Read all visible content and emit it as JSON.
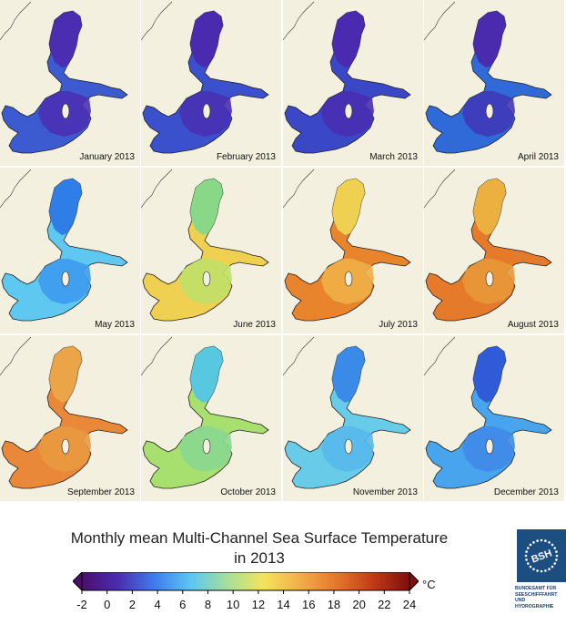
{
  "title_line1": "Monthly mean Multi-Channel Sea Surface Temperature",
  "title_line2": "in 2013",
  "panels": [
    {
      "label": "January 2013",
      "colors": {
        "north": "#4a2db0",
        "central": "#4a30b4",
        "south": "#3d5bd0"
      }
    },
    {
      "label": "February 2013",
      "colors": {
        "north": "#4a2bb0",
        "central": "#4930b4",
        "south": "#3a50cc"
      }
    },
    {
      "label": "March 2013",
      "colors": {
        "north": "#4a2aae",
        "central": "#4a2db2",
        "south": "#3a48c8"
      }
    },
    {
      "label": "April 2013",
      "colors": {
        "north": "#4a2bae",
        "central": "#4038b8",
        "south": "#2f6ad8"
      }
    },
    {
      "label": "May 2013",
      "colors": {
        "north": "#2f7de6",
        "central": "#3e9af0",
        "south": "#5fc8f0"
      }
    },
    {
      "label": "June 2013",
      "colors": {
        "north": "#88d888",
        "central": "#c0e068",
        "south": "#f0d050"
      }
    },
    {
      "label": "July 2013",
      "colors": {
        "north": "#f0d050",
        "central": "#f0b048",
        "south": "#e8842c"
      }
    },
    {
      "label": "August 2013",
      "colors": {
        "north": "#ecb040",
        "central": "#e89838",
        "south": "#e47a2a"
      }
    },
    {
      "label": "September 2013",
      "colors": {
        "north": "#eca448",
        "central": "#ea9a40",
        "south": "#e88838"
      }
    },
    {
      "label": "October 2013",
      "colors": {
        "north": "#58c8e0",
        "central": "#88d890",
        "south": "#a8e070"
      }
    },
    {
      "label": "November 2013",
      "colors": {
        "north": "#3a8ae8",
        "central": "#58b8ec",
        "south": "#68cce8"
      }
    },
    {
      "label": "December 2013",
      "colors": {
        "north": "#2f5ad8",
        "central": "#3f8ae8",
        "south": "#48a4ec"
      }
    }
  ],
  "colorbar": {
    "ticks": [
      "-2",
      "0",
      "2",
      "4",
      "6",
      "8",
      "10",
      "12",
      "14",
      "16",
      "18",
      "20",
      "22",
      "24"
    ],
    "unit": "°C",
    "range": [
      -2,
      24
    ],
    "stops": [
      "#4b0f6a",
      "#4a2db2",
      "#3f7cee",
      "#5cc6f2",
      "#a6e09a",
      "#f4e458",
      "#f2ae48",
      "#e6762c",
      "#c23a16",
      "#7e0d0d"
    ]
  },
  "logo": {
    "abbr": "BSH",
    "lines": [
      "BUNDESAMT FÜR",
      "SEESCHIFFFAHRT",
      "UND",
      "HYDROGRAPHIE"
    ]
  }
}
